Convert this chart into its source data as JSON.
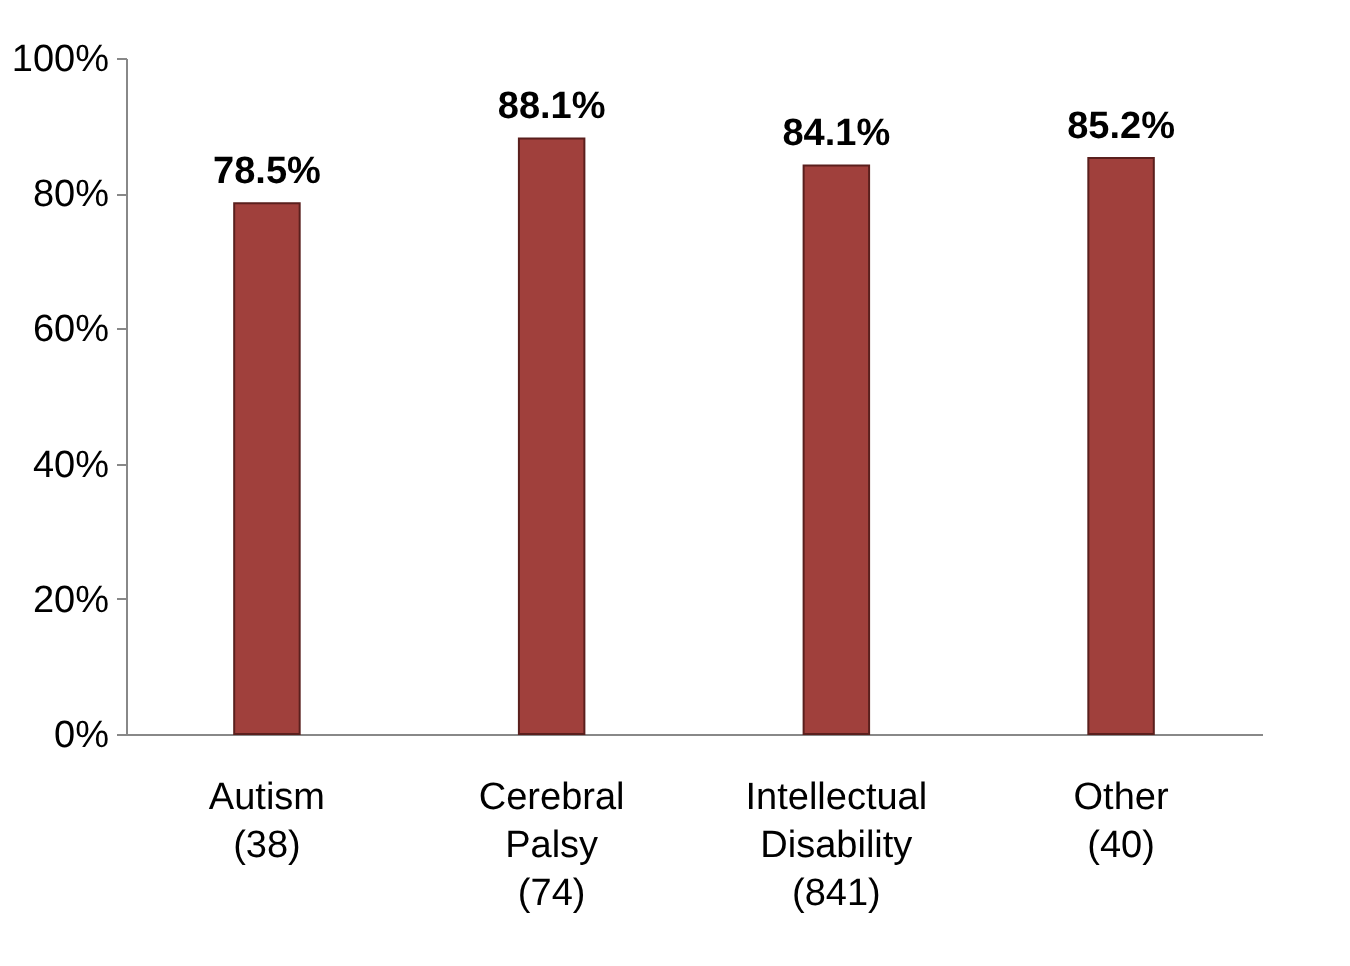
{
  "chart_data": {
    "type": "bar",
    "categories": [
      "Autism (38)",
      "Cerebral Palsy (74)",
      "Intellectual Disability (841)",
      "Other (40)"
    ],
    "values": [
      78.5,
      88.1,
      84.1,
      85.2
    ],
    "value_labels": [
      "78.5%",
      "88.1%",
      "84.1%",
      "85.2%"
    ],
    "color": "#a0403c",
    "ylim": [
      0,
      100
    ],
    "yticks": [
      {
        "value": 0,
        "label": "0%"
      },
      {
        "value": 20,
        "label": "20%"
      },
      {
        "value": 40,
        "label": "40%"
      },
      {
        "value": 60,
        "label": "60%"
      },
      {
        "value": 80,
        "label": "80%"
      },
      {
        "value": 100,
        "label": "100%"
      }
    ],
    "grid": false
  }
}
